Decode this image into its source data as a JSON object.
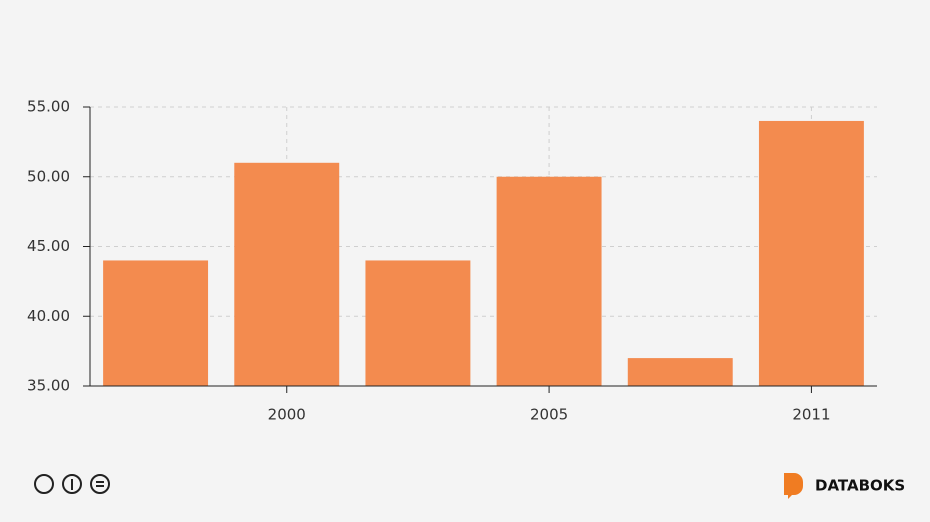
{
  "chart_data": {
    "type": "bar",
    "categories": [
      null,
      "2000",
      null,
      "2005",
      null,
      "2011"
    ],
    "values": [
      44,
      51,
      44,
      50,
      37,
      54
    ],
    "color": "#f38b4f",
    "ylim": [
      35,
      55
    ],
    "yticks": [
      {
        "value": 35,
        "label": "35.00"
      },
      {
        "value": 40,
        "label": "40.00"
      },
      {
        "value": 45,
        "label": "45.00"
      },
      {
        "value": 50,
        "label": "50.00"
      },
      {
        "value": 55,
        "label": "55.00"
      }
    ],
    "grid": true
  },
  "brand": "DATABOKS"
}
